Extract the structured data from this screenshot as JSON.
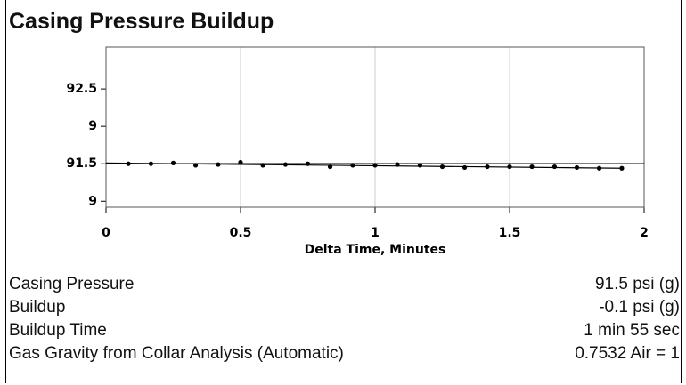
{
  "chart_data": {
    "type": "scatter",
    "title": "Casing Pressure Buildup",
    "x_label": "Delta Time, Minutes",
    "x": [
      0.083,
      0.167,
      0.25,
      0.333,
      0.417,
      0.5,
      0.583,
      0.667,
      0.75,
      0.833,
      0.917,
      1.0,
      1.083,
      1.167,
      1.25,
      1.333,
      1.417,
      1.5,
      1.583,
      1.667,
      1.75,
      1.833,
      1.917
    ],
    "values": [
      91.5,
      91.5,
      91.51,
      91.48,
      91.49,
      91.52,
      91.48,
      91.49,
      91.5,
      91.46,
      91.48,
      91.48,
      91.49,
      91.48,
      91.46,
      91.45,
      91.46,
      91.46,
      91.46,
      91.46,
      91.45,
      91.44,
      91.44
    ],
    "color": "#000000",
    "trend_line": {
      "x": [
        0,
        1.917
      ],
      "values": [
        91.51,
        91.44
      ]
    },
    "reference_line": 91.5,
    "xlim": [
      0,
      2
    ],
    "xticks": [
      0,
      0.5,
      1,
      1.5,
      2
    ],
    "ylim": [
      90.92,
      93.06
    ],
    "yticks": [
      {
        "value": 91,
        "label": "9"
      },
      91.5,
      {
        "value": 92,
        "label": "9"
      },
      92.5
    ],
    "grid": true
  },
  "info_rows": [
    [
      "Casing Pressure",
      "91.5 psi (g)"
    ],
    [
      "Buildup",
      "-0.1 psi (g)"
    ],
    [
      "Buildup Time",
      "1 min 55 sec"
    ],
    [
      "Gas Gravity from Collar Analysis (Automatic)",
      "0.7532 Air = 1"
    ]
  ]
}
